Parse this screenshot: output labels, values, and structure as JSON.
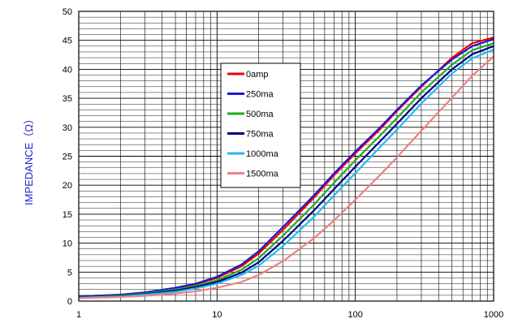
{
  "chart_data": {
    "type": "line",
    "title": "",
    "xlabel": "",
    "ylabel": "IMPEDANCE（Ω）",
    "x_scale": "log",
    "xlim": [
      1,
      1000
    ],
    "ylim": [
      0,
      50
    ],
    "x_ticks": [
      1,
      10,
      100,
      1000
    ],
    "y_ticks": [
      0,
      5,
      10,
      15,
      20,
      25,
      30,
      35,
      40,
      45,
      50
    ],
    "grid": true,
    "legend_position": "center-left",
    "x": [
      1,
      2,
      3,
      5,
      7,
      10,
      15,
      20,
      30,
      50,
      70,
      100,
      150,
      200,
      300,
      500,
      700,
      1000
    ],
    "series": [
      {
        "name": "0amp",
        "color": "#ee0000",
        "values": [
          0.8,
          1.1,
          1.5,
          2.2,
          2.9,
          4.0,
          6.0,
          8.2,
          12.3,
          17.8,
          21.7,
          25.5,
          29.6,
          32.8,
          37.0,
          42.0,
          44.5,
          45.5
        ]
      },
      {
        "name": "250ma",
        "color": "#1a1acc",
        "values": [
          0.8,
          1.1,
          1.5,
          2.3,
          3.0,
          4.2,
          6.3,
          8.6,
          12.8,
          18.2,
          22.0,
          25.8,
          29.9,
          33.0,
          37.2,
          41.7,
          44.0,
          45.2
        ]
      },
      {
        "name": "500ma",
        "color": "#22aa22",
        "values": [
          0.7,
          1.0,
          1.3,
          2.0,
          2.6,
          3.6,
          5.4,
          7.4,
          11.3,
          16.6,
          20.4,
          24.3,
          28.5,
          31.6,
          36.0,
          40.8,
          43.3,
          44.5
        ]
      },
      {
        "name": "750ma",
        "color": "#000088",
        "values": [
          0.7,
          0.9,
          1.2,
          1.8,
          2.4,
          3.3,
          4.9,
          6.7,
          10.4,
          15.6,
          19.3,
          23.2,
          27.5,
          30.6,
          35.0,
          40.0,
          42.6,
          44.0
        ]
      },
      {
        "name": "1000ma",
        "color": "#22bbee",
        "values": [
          0.6,
          0.8,
          1.1,
          1.6,
          2.2,
          3.0,
          4.5,
          6.1,
          9.5,
          14.5,
          18.2,
          22.1,
          26.5,
          29.6,
          34.1,
          39.3,
          41.9,
          43.4
        ]
      },
      {
        "name": "1500ma",
        "color": "#f08080",
        "values": [
          0.5,
          0.7,
          0.9,
          1.3,
          1.7,
          2.3,
          3.3,
          4.5,
          6.9,
          10.8,
          13.9,
          17.5,
          21.7,
          24.8,
          29.4,
          35.1,
          38.9,
          42.2
        ]
      }
    ]
  }
}
